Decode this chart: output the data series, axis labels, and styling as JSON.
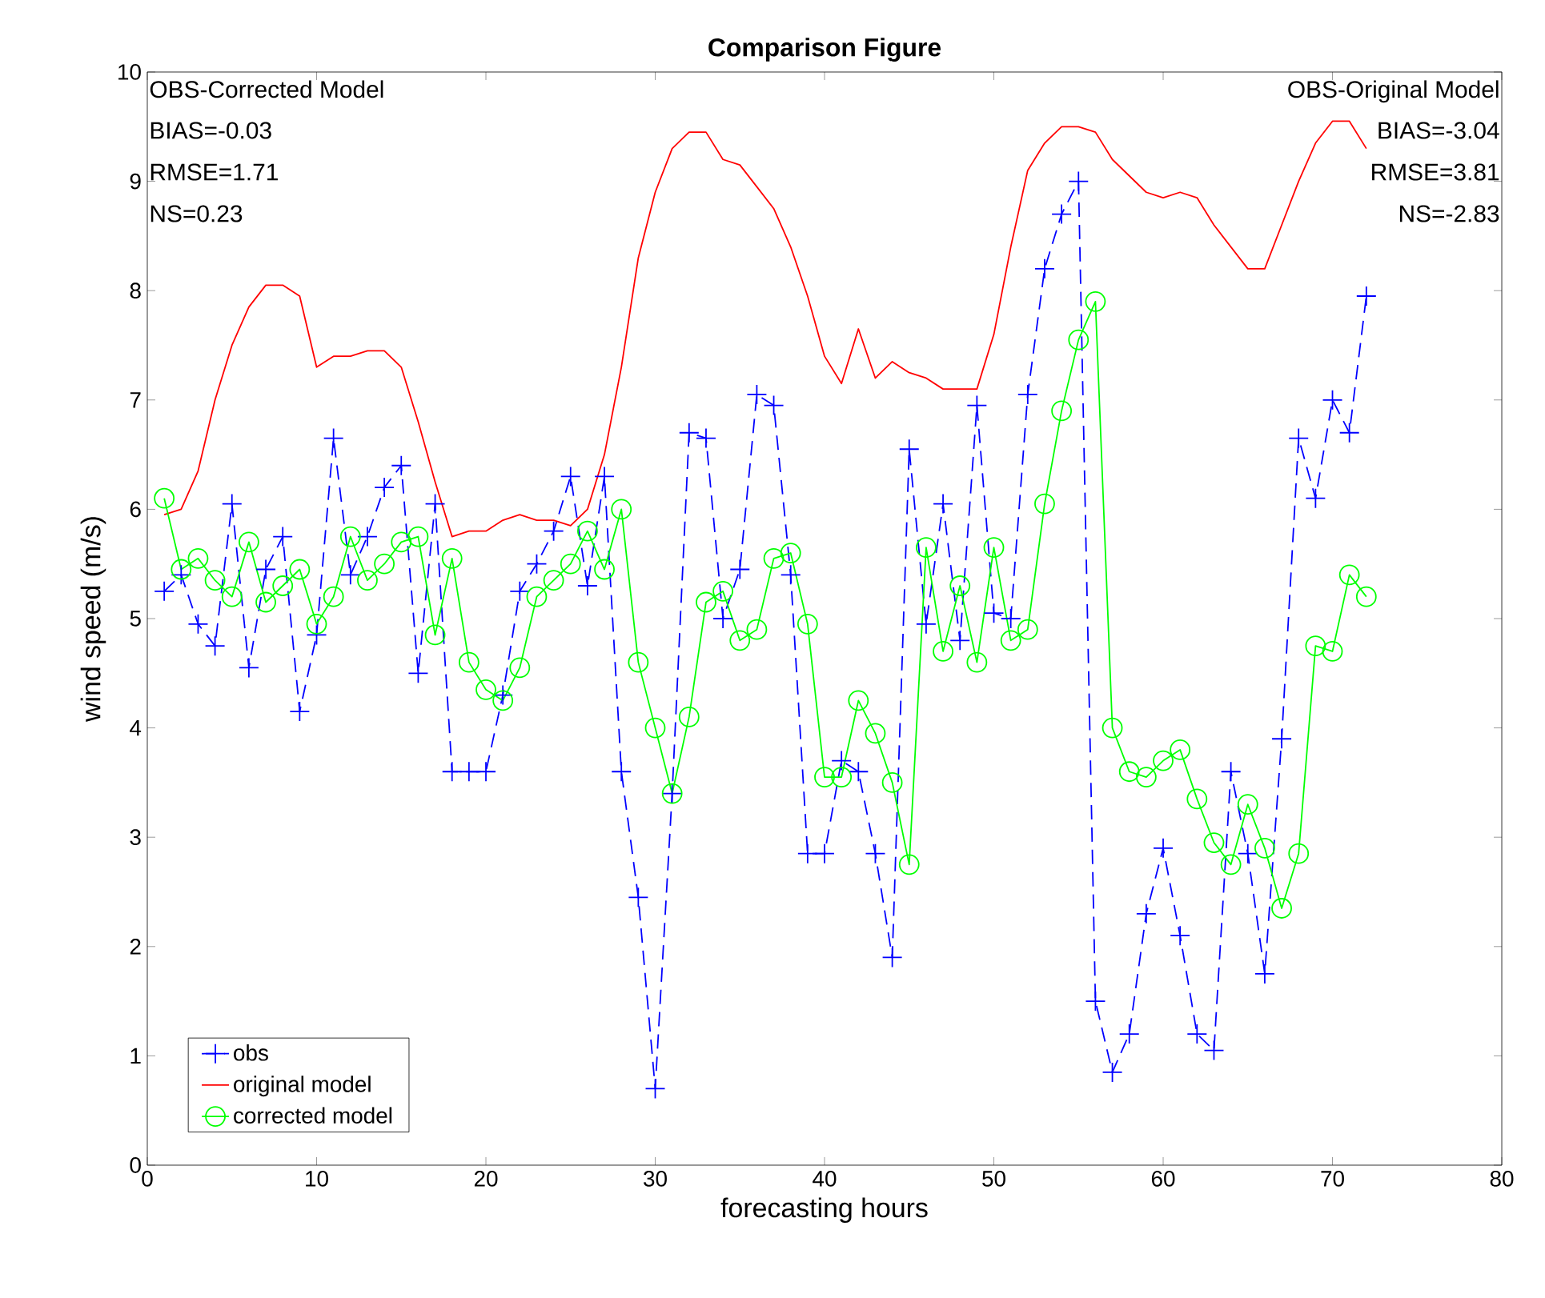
{
  "chart_data": {
    "type": "line",
    "title": "Comparison Figure",
    "xlabel": "forecasting hours",
    "ylabel": "wind speed (m/s)",
    "x": [
      1,
      2,
      3,
      4,
      5,
      6,
      7,
      8,
      9,
      10,
      11,
      12,
      13,
      14,
      15,
      16,
      17,
      18,
      19,
      20,
      21,
      22,
      23,
      24,
      25,
      26,
      27,
      28,
      29,
      30,
      31,
      32,
      33,
      34,
      35,
      36,
      37,
      38,
      39,
      40,
      41,
      42,
      43,
      44,
      45,
      46,
      47,
      48,
      49,
      50,
      51,
      52,
      53,
      54,
      55,
      56,
      57,
      58,
      59,
      60,
      61,
      62,
      63,
      64,
      65,
      66,
      67,
      68,
      69,
      70,
      71,
      72
    ],
    "series": [
      {
        "name": "obs",
        "color": "#0000ff",
        "marker": "cross",
        "line_style": "dashed",
        "values": [
          5.25,
          5.4,
          4.95,
          4.75,
          6.05,
          4.55,
          5.45,
          5.75,
          4.15,
          4.85,
          6.65,
          5.4,
          5.75,
          6.2,
          6.4,
          4.5,
          6.05,
          3.6,
          3.6,
          3.6,
          4.3,
          5.25,
          5.5,
          5.8,
          6.3,
          5.3,
          6.3,
          3.6,
          2.45,
          0.7,
          3.4,
          6.7,
          6.65,
          5.0,
          5.45,
          7.05,
          6.95,
          5.4,
          2.85,
          2.85,
          3.7,
          3.6,
          2.85,
          1.9,
          6.55,
          4.95,
          6.05,
          4.8,
          6.95,
          5.05,
          5.0,
          7.05,
          8.2,
          8.7,
          9.0,
          1.5,
          0.85,
          1.2,
          2.3,
          2.9,
          2.1,
          1.2,
          1.05,
          3.6,
          2.85,
          1.75,
          3.9,
          6.65,
          6.1,
          7.0,
          6.7,
          7.95
        ]
      },
      {
        "name": "original model",
        "color": "#ff0000",
        "marker": "none",
        "line_style": "solid",
        "values": [
          5.95,
          6.0,
          6.35,
          7.0,
          7.5,
          7.85,
          8.05,
          8.05,
          7.95,
          7.3,
          7.4,
          7.4,
          7.45,
          7.45,
          7.3,
          6.8,
          6.25,
          5.75,
          5.8,
          5.8,
          5.9,
          5.95,
          5.9,
          5.9,
          5.85,
          6.0,
          6.5,
          7.3,
          8.3,
          8.9,
          9.3,
          9.45,
          9.45,
          9.2,
          9.15,
          8.95,
          8.75,
          8.4,
          7.95,
          7.4,
          7.15,
          7.65,
          7.2,
          7.35,
          7.25,
          7.2,
          7.1,
          7.1,
          7.1,
          7.6,
          8.4,
          9.1,
          9.35,
          9.5,
          9.5,
          9.45,
          9.2,
          9.05,
          8.9,
          8.85,
          8.9,
          8.85,
          8.6,
          8.4,
          8.2,
          8.2,
          8.6,
          9.0,
          9.35,
          9.55,
          9.55,
          9.3
        ]
      },
      {
        "name": "corrected model",
        "color": "#00ff00",
        "marker": "circle",
        "line_style": "solid",
        "values": [
          6.1,
          5.45,
          5.55,
          5.35,
          5.2,
          5.7,
          5.15,
          5.3,
          5.45,
          4.95,
          5.2,
          5.75,
          5.35,
          5.5,
          5.7,
          5.75,
          4.85,
          5.55,
          4.6,
          4.35,
          4.25,
          4.55,
          5.2,
          5.35,
          5.5,
          5.8,
          5.45,
          6.0,
          4.6,
          4.0,
          3.4,
          4.1,
          5.15,
          5.25,
          4.8,
          4.9,
          5.55,
          5.6,
          4.95,
          3.55,
          3.55,
          4.25,
          3.95,
          3.5,
          2.75,
          5.65,
          4.7,
          5.3,
          4.6,
          5.65,
          4.8,
          4.9,
          6.05,
          6.9,
          7.55,
          7.9,
          4.0,
          3.6,
          3.55,
          3.7,
          3.8,
          3.35,
          2.95,
          2.75,
          3.3,
          2.9,
          2.35,
          2.85,
          4.75,
          4.7,
          5.4,
          5.2
        ]
      }
    ],
    "xlim": [
      0,
      80
    ],
    "xticks": [
      0,
      10,
      20,
      30,
      40,
      50,
      60,
      70,
      80
    ],
    "ylim": [
      0,
      10
    ],
    "yticks": [
      0,
      1,
      2,
      3,
      4,
      5,
      6,
      7,
      8,
      9,
      10
    ],
    "legend": "bottom left",
    "grid": false,
    "annotations": [
      "OBS-Corrected Model",
      "BIAS=-0.03",
      "RMSE=1.71",
      "NS=0.23",
      "OBS-Original Model",
      "BIAS=-3.04",
      "RMSE=3.81",
      "NS=-2.83"
    ]
  }
}
